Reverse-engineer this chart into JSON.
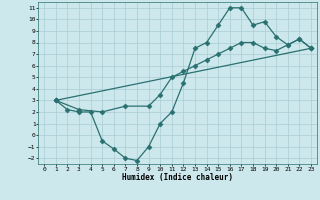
{
  "xlabel": "Humidex (Indice chaleur)",
  "bg_color": "#cce8ec",
  "line_color": "#2a7070",
  "grid_color": "#aaccd4",
  "xlim": [
    -0.5,
    23.5
  ],
  "ylim": [
    -2.5,
    11.5
  ],
  "xticks": [
    0,
    1,
    2,
    3,
    4,
    5,
    6,
    7,
    8,
    9,
    10,
    11,
    12,
    13,
    14,
    15,
    16,
    17,
    18,
    19,
    20,
    21,
    22,
    23
  ],
  "yticks": [
    -2,
    -1,
    0,
    1,
    2,
    3,
    4,
    5,
    6,
    7,
    8,
    9,
    10,
    11
  ],
  "line1_x": [
    1,
    2,
    3,
    4,
    5,
    6,
    7,
    8,
    9,
    10,
    11,
    12,
    13,
    14,
    15,
    16,
    17,
    18,
    19,
    20,
    21,
    22,
    23
  ],
  "line1_y": [
    3,
    2.2,
    2.0,
    2.0,
    -0.5,
    -1.2,
    -2.0,
    -2.2,
    -1.0,
    1.0,
    2.0,
    4.5,
    7.5,
    8.0,
    9.5,
    11.0,
    11.0,
    9.5,
    9.8,
    8.5,
    7.8,
    8.3,
    7.5
  ],
  "line2_x": [
    1,
    3,
    5,
    7,
    9,
    10,
    11,
    12,
    13,
    14,
    15,
    16,
    17,
    18,
    19,
    20,
    21,
    22,
    23
  ],
  "line2_y": [
    3,
    2.2,
    2.0,
    2.5,
    2.5,
    3.5,
    5.0,
    5.5,
    6.0,
    6.5,
    7.0,
    7.5,
    8.0,
    8.0,
    7.5,
    7.3,
    7.8,
    8.3,
    7.5
  ],
  "line3_x": [
    1,
    23
  ],
  "line3_y": [
    3,
    7.5
  ],
  "marker": "D",
  "markersize": 2.5,
  "linewidth": 0.9
}
